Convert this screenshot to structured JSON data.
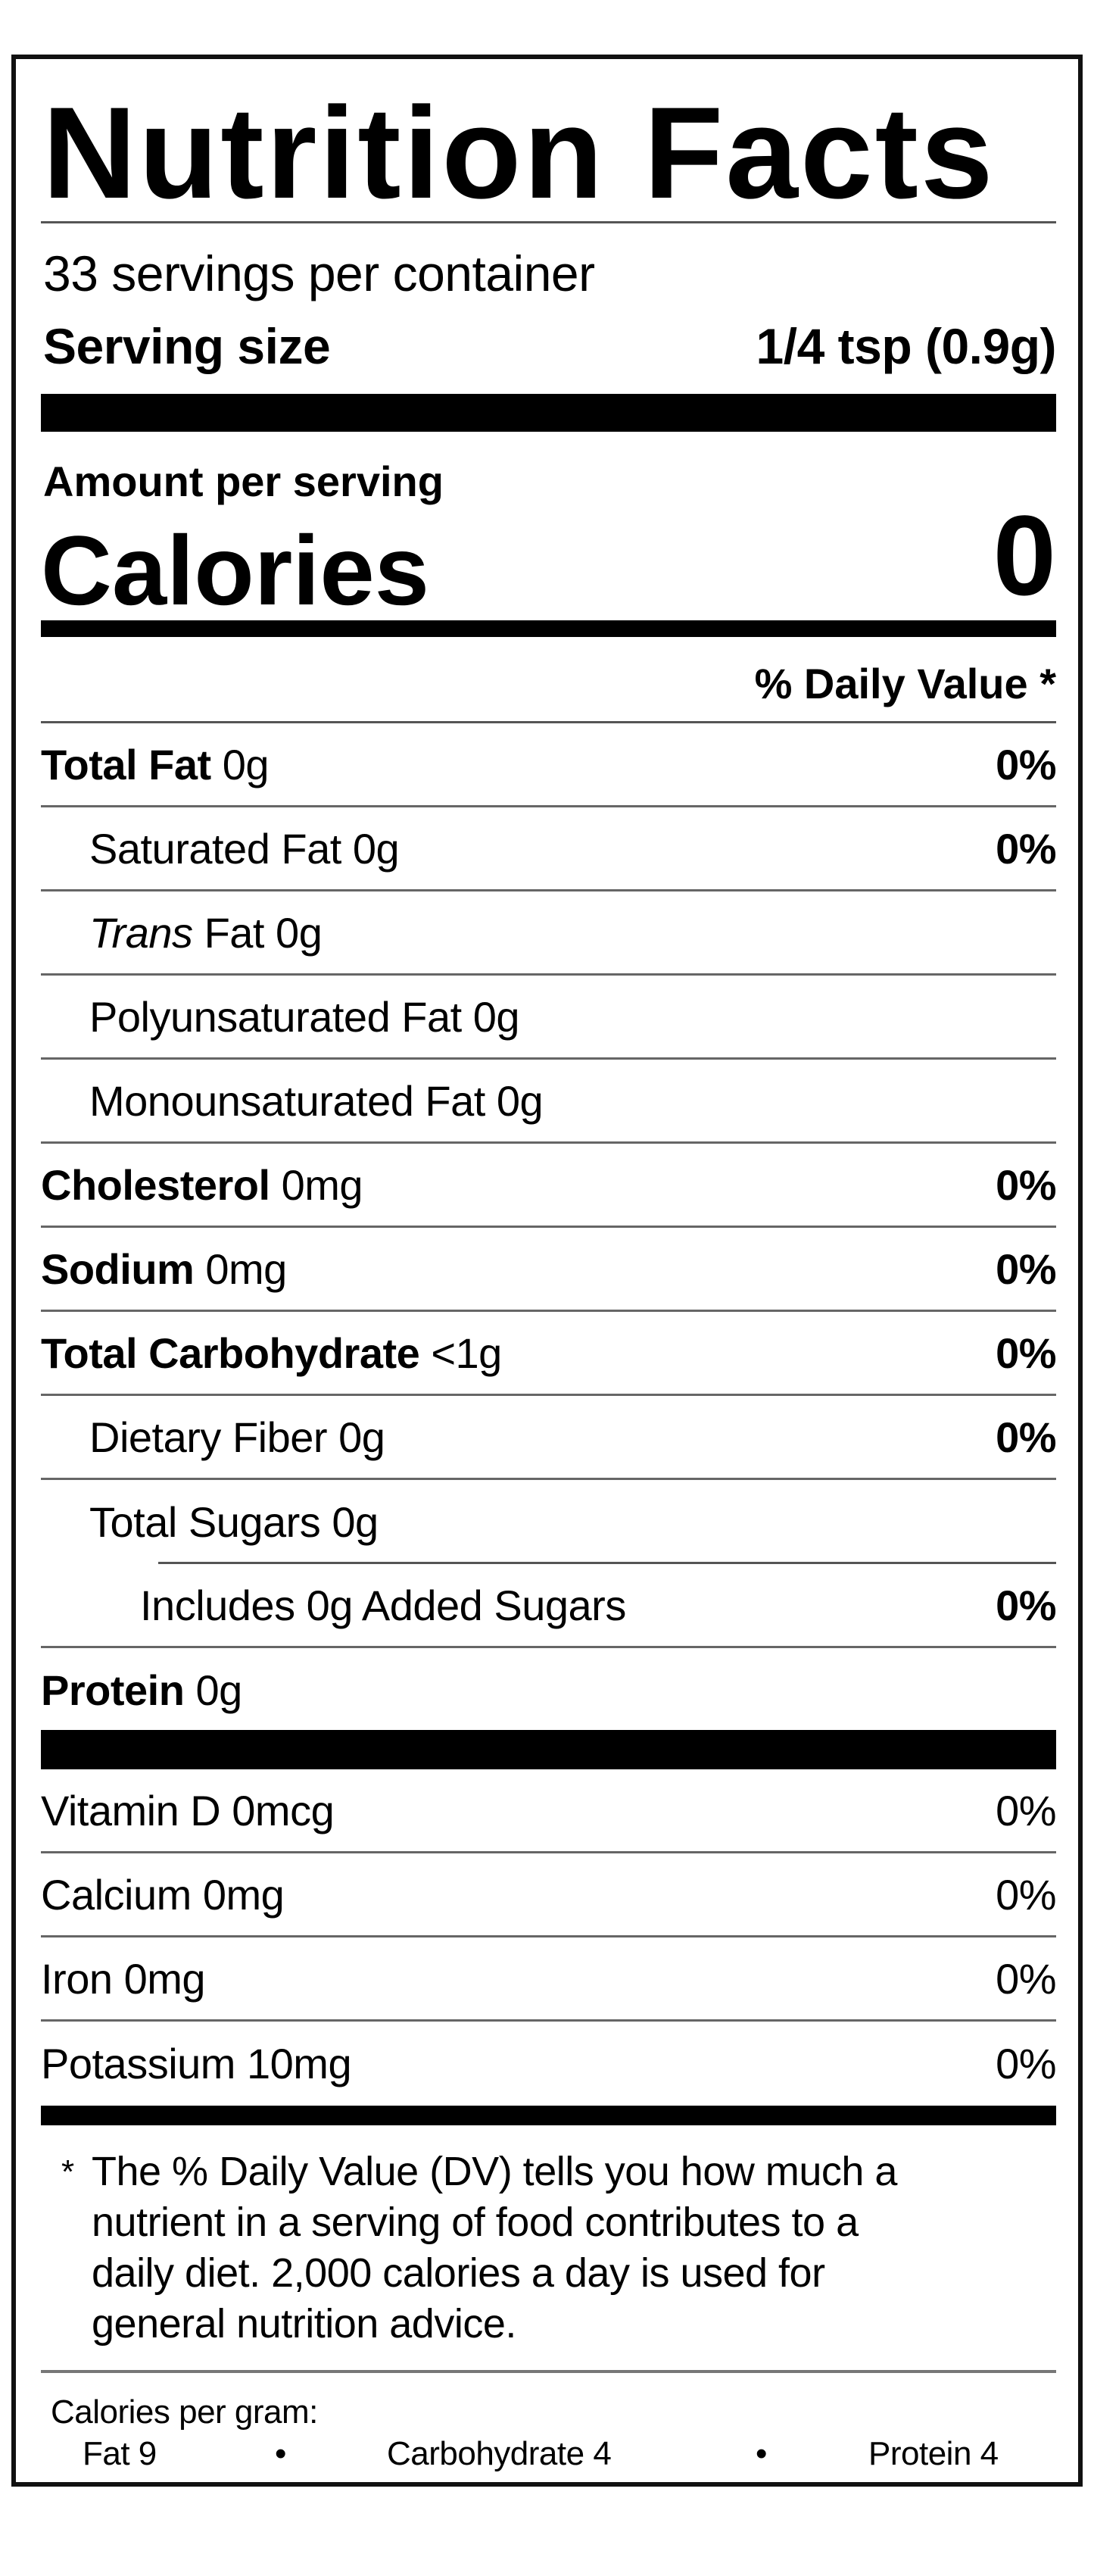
{
  "title": "Nutrition Facts",
  "servings_per_container": "33 servings per container",
  "serving_size": {
    "label": "Serving size",
    "value": "1/4 tsp (0.9g)"
  },
  "amount_per_serving": "Amount per serving",
  "calories": {
    "label": "Calories",
    "value": "0"
  },
  "daily_value_header": "% Daily Value *",
  "nutrients": [
    {
      "name": "Total Fat",
      "amount": "0g",
      "dv": "0%",
      "bold": true,
      "indent": 0
    },
    {
      "name": "Saturated Fat",
      "amount": "0g",
      "dv": "0%",
      "bold": false,
      "indent": 1
    },
    {
      "name": "Trans",
      "name_suffix": "Fat",
      "amount": "0g",
      "dv": "",
      "bold": false,
      "indent": 1,
      "italic_prefix": true
    },
    {
      "name": "Polyunsaturated Fat",
      "amount": "0g",
      "dv": "",
      "bold": false,
      "indent": 1
    },
    {
      "name": "Monounsaturated Fat",
      "amount": "0g",
      "dv": "",
      "bold": false,
      "indent": 1
    },
    {
      "name": "Cholesterol",
      "amount": "0mg",
      "dv": "0%",
      "bold": true,
      "indent": 0
    },
    {
      "name": "Sodium",
      "amount": "0mg",
      "dv": "0%",
      "bold": true,
      "indent": 0
    },
    {
      "name": "Total Carbohydrate",
      "amount": "<1g",
      "dv": "0%",
      "bold": true,
      "indent": 0
    },
    {
      "name": "Dietary Fiber",
      "amount": "0g",
      "dv": "0%",
      "bold": false,
      "indent": 1
    },
    {
      "name": "Total Sugars",
      "amount": "0g",
      "dv": "",
      "bold": false,
      "indent": 1
    },
    {
      "name": "Includes 0g Added Sugars",
      "amount": "",
      "dv": "0%",
      "bold": false,
      "indent": 2
    },
    {
      "name": "Protein",
      "amount": "0g",
      "dv": "",
      "bold": true,
      "indent": 0
    }
  ],
  "vitamins": [
    {
      "name": "Vitamin D",
      "amount": "0mcg",
      "dv": "0%"
    },
    {
      "name": "Calcium",
      "amount": "0mg",
      "dv": "0%"
    },
    {
      "name": "Iron",
      "amount": "0mg",
      "dv": "0%"
    },
    {
      "name": "Potassium",
      "amount": "10mg",
      "dv": "0%"
    }
  ],
  "footnote": {
    "asterisk": "*",
    "lines": [
      "The % Daily Value (DV) tells you how much a",
      "nutrient in a serving of food contributes to a",
      "daily diet. 2,000 calories a day is used for",
      "general nutrition advice."
    ]
  },
  "calories_per_gram": {
    "label": "Calories per gram:",
    "items": [
      "Fat 9",
      "Carbohydrate 4",
      "Protein 4"
    ],
    "separator": "•"
  }
}
